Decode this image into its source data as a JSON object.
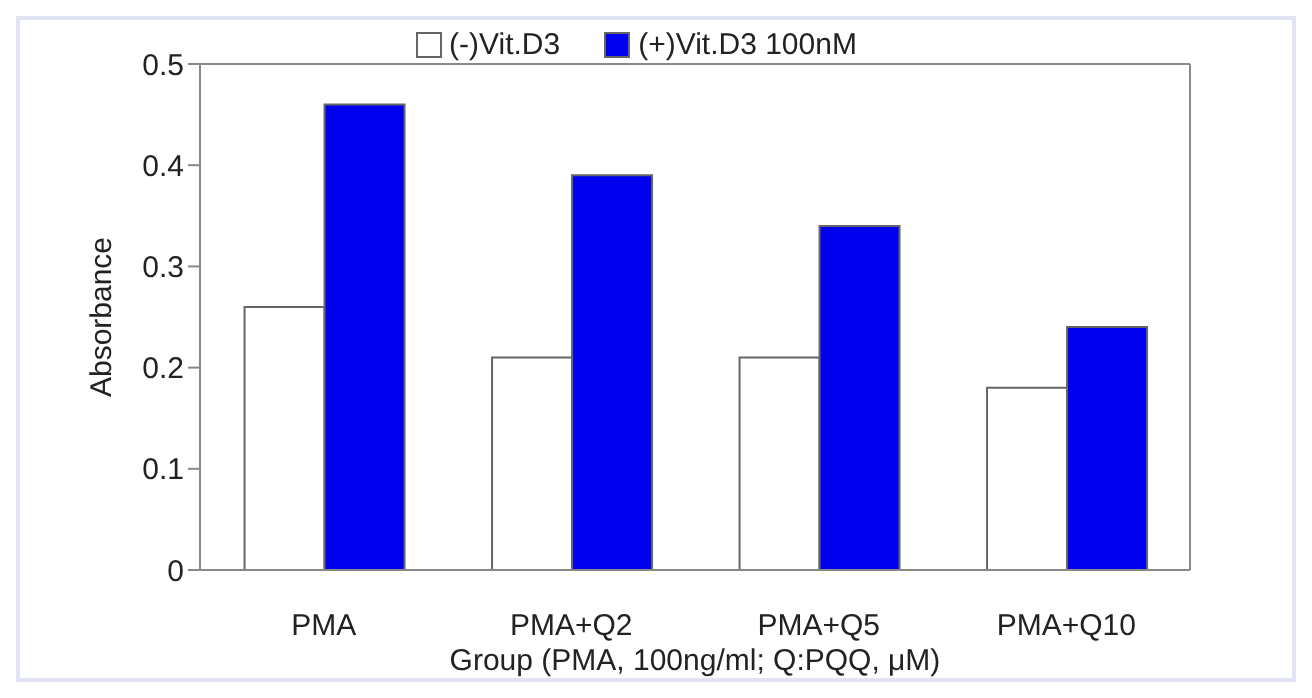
{
  "chart_data": {
    "type": "bar",
    "xlabel": "Group (PMA, 100ng/ml; Q:PQQ, μM)",
    "ylabel": "Absorbance",
    "categories": [
      "PMA",
      "PMA+Q2",
      "PMA+Q5",
      "PMA+Q10"
    ],
    "series": [
      {
        "name": "(-)Vit.D3",
        "color": "#ffffff",
        "values": [
          0.26,
          0.21,
          0.21,
          0.18
        ]
      },
      {
        "name": "(+)Vit.D3 100nM",
        "color": "#0000ee",
        "values": [
          0.46,
          0.39,
          0.34,
          0.24
        ]
      }
    ],
    "ylim": [
      0,
      0.5
    ],
    "yticks": [
      0,
      0.1,
      0.2,
      0.3,
      0.4,
      0.5
    ],
    "grid": false,
    "legend": "top"
  }
}
